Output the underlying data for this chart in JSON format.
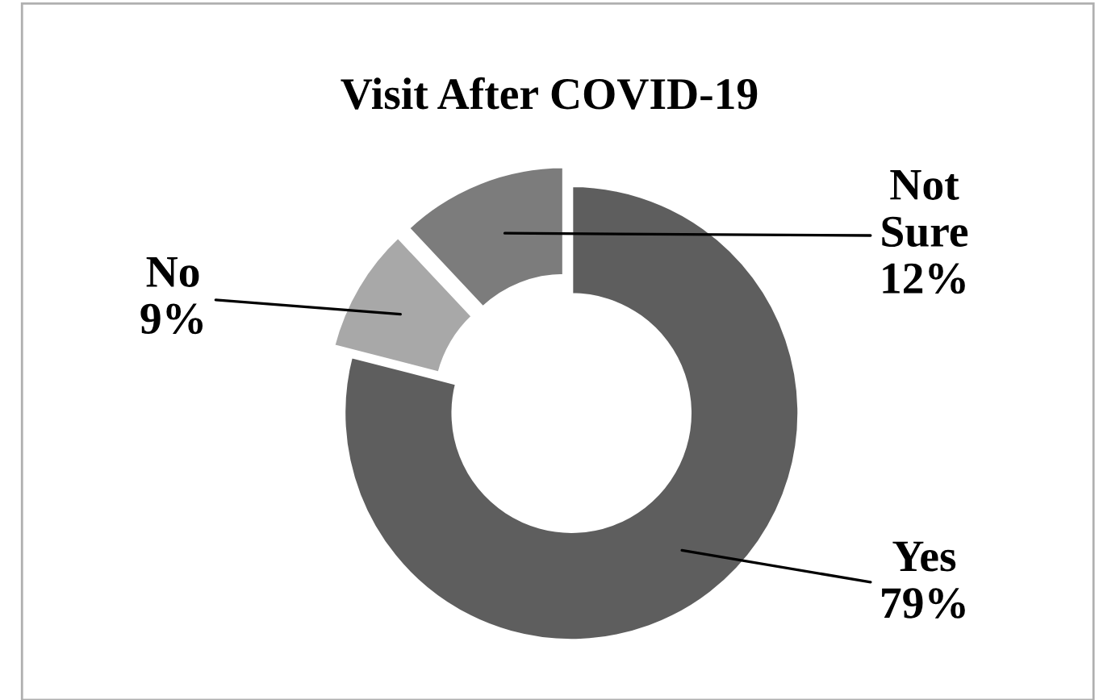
{
  "chart_data": {
    "type": "donut",
    "title": "Visit After COVID-19",
    "categories": [
      "Yes",
      "No",
      "Not Sure"
    ],
    "values": [
      79,
      9,
      12
    ],
    "value_labels": [
      "79%",
      "9%",
      "12%"
    ],
    "colors": [
      "#5e5e5e",
      "#a8a8a8",
      "#7c7c7c"
    ],
    "legend": false
  }
}
